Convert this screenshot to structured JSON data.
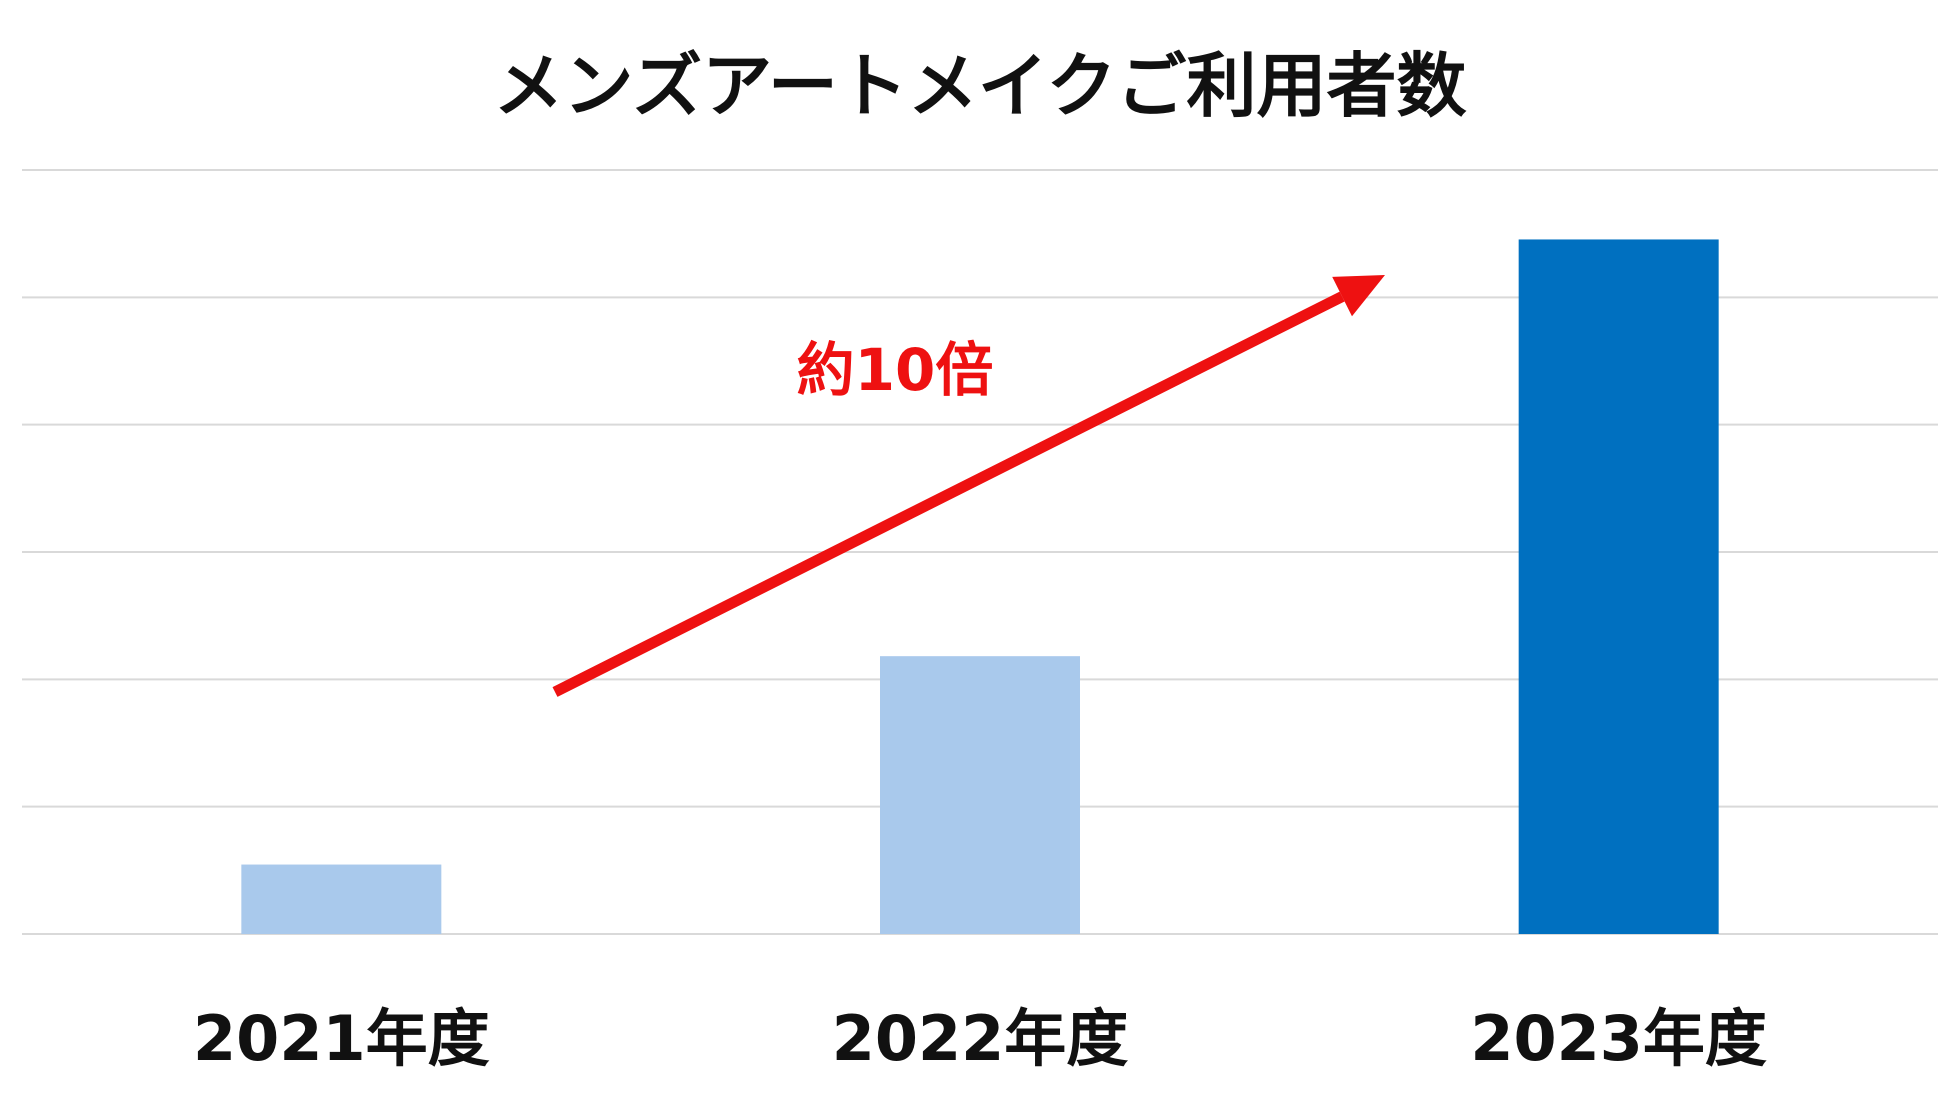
{
  "chart_data": {
    "type": "bar",
    "title": "メンズアートメイクご利用者数",
    "xlabel": "",
    "ylabel": "",
    "categories": [
      "2021年度",
      "2022年度",
      "2023年度"
    ],
    "values": [
      1,
      4,
      10
    ],
    "ylim": [
      0,
      11
    ],
    "grid": true,
    "legend": "none",
    "colors": [
      "#a9c9ec",
      "#a9c9ec",
      "#0070c0"
    ],
    "annotation": {
      "text": "約10倍",
      "color": "#ee1111"
    }
  }
}
